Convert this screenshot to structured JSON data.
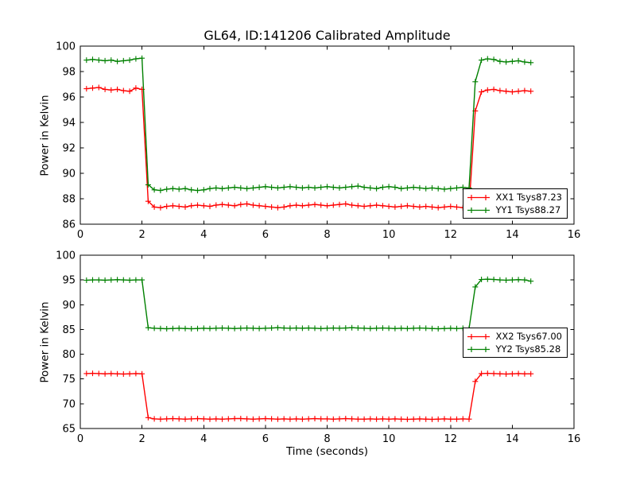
{
  "figure": {
    "title": "GL64, ID:141206 Calibrated Amplitude",
    "background": "#ffffff",
    "frame_color": "#000000"
  },
  "chart_data": [
    {
      "type": "line",
      "ylabel": "Power in Kelvin",
      "xlabel": "",
      "xlim": [
        0,
        16
      ],
      "ylim": [
        86,
        100
      ],
      "xticks": [
        0,
        2,
        4,
        6,
        8,
        10,
        12,
        14,
        16
      ],
      "yticks": [
        86,
        88,
        90,
        92,
        94,
        96,
        98,
        100
      ],
      "grid": false,
      "legend_position": "lower-right",
      "marker": "plus",
      "x": [
        0.2,
        0.4,
        0.6,
        0.8,
        1.0,
        1.2,
        1.4,
        1.6,
        1.8,
        2.0,
        2.2,
        2.4,
        2.6,
        2.8,
        3.0,
        3.2,
        3.4,
        3.6,
        3.8,
        4.0,
        4.2,
        4.4,
        4.6,
        4.8,
        5.0,
        5.2,
        5.4,
        5.6,
        5.8,
        6.0,
        6.2,
        6.4,
        6.6,
        6.8,
        7.0,
        7.2,
        7.4,
        7.6,
        7.8,
        8.0,
        8.2,
        8.4,
        8.6,
        8.8,
        9.0,
        9.2,
        9.4,
        9.6,
        9.8,
        10.0,
        10.2,
        10.4,
        10.6,
        10.8,
        11.0,
        11.2,
        11.4,
        11.6,
        11.8,
        12.0,
        12.2,
        12.4,
        12.6,
        12.8,
        13.0,
        13.2,
        13.4,
        13.6,
        13.8,
        14.0,
        14.2,
        14.4,
        14.6
      ],
      "series": [
        {
          "name": "XX1 Tsys87.23",
          "color": "#ff0000",
          "values": [
            96.65,
            96.7,
            96.75,
            96.6,
            96.55,
            96.6,
            96.5,
            96.45,
            96.7,
            96.6,
            87.8,
            87.35,
            87.3,
            87.4,
            87.45,
            87.4,
            87.35,
            87.45,
            87.5,
            87.45,
            87.4,
            87.5,
            87.55,
            87.5,
            87.45,
            87.55,
            87.6,
            87.5,
            87.45,
            87.4,
            87.35,
            87.3,
            87.35,
            87.45,
            87.5,
            87.45,
            87.5,
            87.55,
            87.5,
            87.45,
            87.5,
            87.55,
            87.6,
            87.5,
            87.45,
            87.4,
            87.45,
            87.5,
            87.45,
            87.4,
            87.35,
            87.4,
            87.45,
            87.4,
            87.35,
            87.4,
            87.35,
            87.3,
            87.35,
            87.4,
            87.35,
            87.3,
            87.3,
            94.9,
            96.4,
            96.55,
            96.6,
            96.5,
            96.45,
            96.4,
            96.45,
            96.5,
            96.45
          ]
        },
        {
          "name": "YY1 Tsys88.27",
          "color": "#008000",
          "values": [
            98.9,
            98.95,
            98.9,
            98.85,
            98.9,
            98.8,
            98.85,
            98.9,
            99.0,
            99.05,
            89.1,
            88.7,
            88.65,
            88.75,
            88.8,
            88.75,
            88.8,
            88.7,
            88.65,
            88.7,
            88.8,
            88.85,
            88.8,
            88.85,
            88.9,
            88.85,
            88.8,
            88.85,
            88.9,
            88.95,
            88.9,
            88.85,
            88.9,
            88.95,
            88.9,
            88.85,
            88.9,
            88.85,
            88.9,
            88.95,
            88.9,
            88.85,
            88.9,
            88.95,
            89.0,
            88.9,
            88.85,
            88.8,
            88.9,
            88.95,
            88.9,
            88.8,
            88.85,
            88.9,
            88.85,
            88.8,
            88.85,
            88.8,
            88.75,
            88.8,
            88.85,
            88.9,
            88.85,
            97.2,
            98.9,
            99.0,
            98.95,
            98.8,
            98.75,
            98.8,
            98.85,
            98.75,
            98.7
          ]
        }
      ]
    },
    {
      "type": "line",
      "ylabel": "Power in Kelvin",
      "xlabel": "Time (seconds)",
      "xlim": [
        0,
        16
      ],
      "ylim": [
        65,
        100
      ],
      "xticks": [
        0,
        2,
        4,
        6,
        8,
        10,
        12,
        14,
        16
      ],
      "yticks": [
        65,
        70,
        75,
        80,
        85,
        90,
        95,
        100
      ],
      "grid": false,
      "legend_position": "center-right",
      "marker": "plus",
      "x": [
        0.2,
        0.4,
        0.6,
        0.8,
        1.0,
        1.2,
        1.4,
        1.6,
        1.8,
        2.0,
        2.2,
        2.4,
        2.6,
        2.8,
        3.0,
        3.2,
        3.4,
        3.6,
        3.8,
        4.0,
        4.2,
        4.4,
        4.6,
        4.8,
        5.0,
        5.2,
        5.4,
        5.6,
        5.8,
        6.0,
        6.2,
        6.4,
        6.6,
        6.8,
        7.0,
        7.2,
        7.4,
        7.6,
        7.8,
        8.0,
        8.2,
        8.4,
        8.6,
        8.8,
        9.0,
        9.2,
        9.4,
        9.6,
        9.8,
        10.0,
        10.2,
        10.4,
        10.6,
        10.8,
        11.0,
        11.2,
        11.4,
        11.6,
        11.8,
        12.0,
        12.2,
        12.4,
        12.6,
        12.8,
        13.0,
        13.2,
        13.4,
        13.6,
        13.8,
        14.0,
        14.2,
        14.4,
        14.6
      ],
      "series": [
        {
          "name": "XX2 Tsys67.00",
          "color": "#ff0000",
          "values": [
            76.1,
            76.15,
            76.1,
            76.05,
            76.1,
            76.05,
            76.0,
            76.05,
            76.1,
            76.05,
            67.2,
            66.95,
            66.9,
            66.95,
            67.0,
            66.95,
            66.9,
            66.95,
            67.0,
            66.95,
            66.9,
            66.95,
            66.9,
            66.95,
            67.0,
            67.0,
            66.95,
            66.9,
            66.95,
            67.0,
            66.95,
            66.9,
            66.95,
            66.9,
            66.95,
            66.9,
            66.95,
            67.0,
            66.95,
            66.95,
            66.9,
            66.95,
            67.0,
            66.95,
            66.9,
            66.9,
            66.95,
            66.9,
            66.95,
            66.9,
            66.95,
            66.9,
            66.85,
            66.9,
            66.95,
            66.9,
            66.85,
            66.9,
            66.95,
            66.9,
            66.9,
            66.95,
            66.9,
            74.5,
            76.1,
            76.15,
            76.1,
            76.05,
            76.0,
            76.05,
            76.1,
            76.05,
            76.05
          ]
        },
        {
          "name": "YY2 Tsys85.28",
          "color": "#008000",
          "values": [
            94.95,
            95.0,
            95.0,
            94.95,
            95.0,
            95.05,
            95.0,
            94.95,
            95.0,
            95.0,
            85.35,
            85.25,
            85.2,
            85.15,
            85.2,
            85.25,
            85.2,
            85.15,
            85.2,
            85.25,
            85.2,
            85.25,
            85.3,
            85.25,
            85.2,
            85.25,
            85.3,
            85.25,
            85.2,
            85.25,
            85.3,
            85.35,
            85.3,
            85.25,
            85.3,
            85.25,
            85.3,
            85.25,
            85.2,
            85.25,
            85.3,
            85.25,
            85.3,
            85.35,
            85.3,
            85.25,
            85.2,
            85.25,
            85.3,
            85.25,
            85.2,
            85.25,
            85.2,
            85.25,
            85.3,
            85.25,
            85.2,
            85.15,
            85.2,
            85.25,
            85.2,
            85.25,
            85.2,
            93.6,
            95.1,
            95.15,
            95.1,
            95.0,
            94.95,
            95.0,
            95.05,
            95.0,
            94.75
          ]
        }
      ]
    }
  ]
}
